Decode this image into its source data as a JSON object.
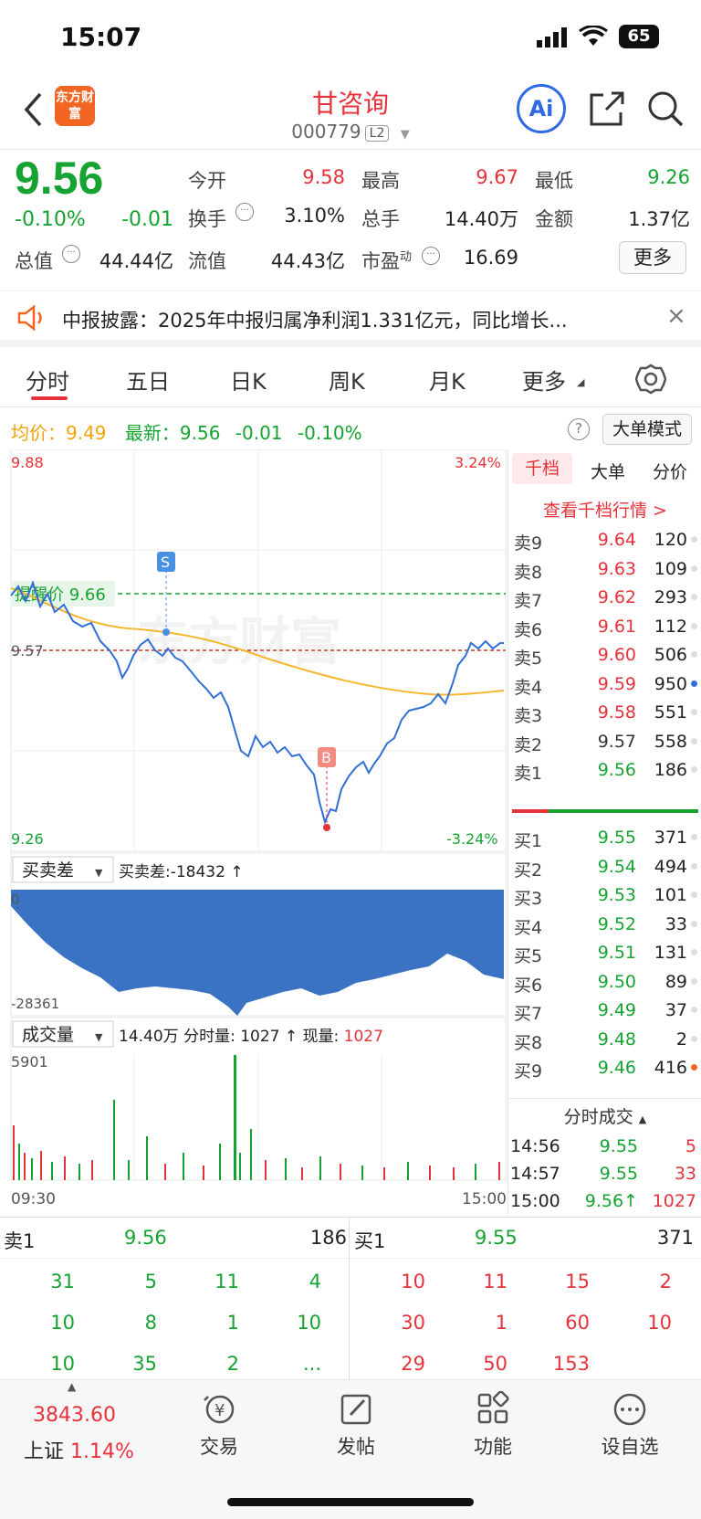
{
  "status": {
    "time": "15:07",
    "battery": "65"
  },
  "header": {
    "title": "甘咨询",
    "code": "000779",
    "level": "L2",
    "logo_text": "东方财富",
    "ai_label": "Ai"
  },
  "quote": {
    "price": "9.56",
    "pct": "-0.10%",
    "change": "-0.01",
    "open_label": "今开",
    "open": "9.58",
    "high_label": "最高",
    "high": "9.67",
    "low_label": "最低",
    "low": "9.26",
    "turnover_label": "换手",
    "turnover": "3.10%",
    "volume_label": "总手",
    "volume": "14.40万",
    "amount_label": "金额",
    "amount": "1.37亿",
    "mktcap_label": "总值",
    "mktcap": "44.44亿",
    "float_label": "流值",
    "float": "44.43亿",
    "pe_label": "市盈",
    "pe_sup": "动",
    "pe": "16.69",
    "more": "更多"
  },
  "notice": {
    "text": "中报披露：2025年中报归属净利润1.331亿元，同比增长..."
  },
  "tabs": [
    "分时",
    "五日",
    "日K",
    "周K",
    "月K",
    "更多"
  ],
  "info": {
    "avg_label": "均价：",
    "avg": "9.49",
    "latest_label": "最新：",
    "latest": "9.56",
    "chg": "-0.01",
    "pct": "-0.10%",
    "mode_btn": "大单模式"
  },
  "chart": {
    "y_top": "9.88",
    "y_top_pct": "3.24%",
    "y_bottom": "9.26",
    "y_bottom_pct": "-3.24%",
    "prev_close": "9.57",
    "alert_label": "提醒价 9.66",
    "watermark": "东方财富",
    "marker_s": "S",
    "marker_b": "B",
    "diff_btn": "买卖差",
    "diff_text": "买卖差:-18432 ↑",
    "diff_top": "0",
    "diff_bottom": "-28361",
    "vol_btn": "成交量",
    "vol_text1": "14.40万 分时量: 1027 ↑ 现量: ",
    "vol_text2": "1027",
    "vol_max": "5901",
    "time_start": "09:30",
    "time_end": "15:00"
  },
  "orderbook": {
    "tabs": [
      "千档",
      "大单",
      "分价"
    ],
    "link": "查看千档行情 >",
    "sells": [
      {
        "label": "卖9",
        "price": "9.64",
        "vol": "120",
        "c": "red"
      },
      {
        "label": "卖8",
        "price": "9.63",
        "vol": "109",
        "c": "red"
      },
      {
        "label": "卖7",
        "price": "9.62",
        "vol": "293",
        "c": "red"
      },
      {
        "label": "卖6",
        "price": "9.61",
        "vol": "112",
        "c": "red"
      },
      {
        "label": "卖5",
        "price": "9.60",
        "vol": "506",
        "c": "red"
      },
      {
        "label": "卖4",
        "price": "9.59",
        "vol": "950",
        "c": "red"
      },
      {
        "label": "卖3",
        "price": "9.58",
        "vol": "551",
        "c": "red"
      },
      {
        "label": "卖2",
        "price": "9.57",
        "vol": "558",
        "c": "gray"
      },
      {
        "label": "卖1",
        "price": "9.56",
        "vol": "186",
        "c": "green"
      }
    ],
    "buys": [
      {
        "label": "买1",
        "price": "9.55",
        "vol": "371",
        "c": "green"
      },
      {
        "label": "买2",
        "price": "9.54",
        "vol": "494",
        "c": "green"
      },
      {
        "label": "买3",
        "price": "9.53",
        "vol": "101",
        "c": "green"
      },
      {
        "label": "买4",
        "price": "9.52",
        "vol": "33",
        "c": "green"
      },
      {
        "label": "买5",
        "price": "9.51",
        "vol": "131",
        "c": "green"
      },
      {
        "label": "买6",
        "price": "9.50",
        "vol": "89",
        "c": "green"
      },
      {
        "label": "买7",
        "price": "9.49",
        "vol": "37",
        "c": "green"
      },
      {
        "label": "买8",
        "price": "9.48",
        "vol": "2",
        "c": "green"
      },
      {
        "label": "买9",
        "price": "9.46",
        "vol": "416",
        "c": "green"
      }
    ],
    "trades_title": "分时成交",
    "trades": [
      {
        "time": "14:56",
        "price": "9.55",
        "vol": "5"
      },
      {
        "time": "14:57",
        "price": "9.55",
        "vol": "33"
      },
      {
        "time": "15:00",
        "price": "9.56↑",
        "vol": "1027"
      }
    ]
  },
  "book": {
    "sell1_label": "卖1",
    "sell1_price": "9.56",
    "sell1_vol": "186",
    "buy1_label": "买1",
    "buy1_price": "9.55",
    "buy1_vol": "371",
    "sell_queue": [
      [
        "31",
        "5",
        "11",
        "4"
      ],
      [
        "10",
        "8",
        "1",
        "10"
      ],
      [
        "10",
        "35",
        "2",
        "..."
      ]
    ],
    "buy_queue": [
      [
        "10",
        "11",
        "15",
        "2"
      ],
      [
        "30",
        "1",
        "60",
        "10"
      ],
      [
        "29",
        "50",
        "153",
        ""
      ]
    ]
  },
  "bottom_nav": {
    "index_value": "3843.60",
    "index_name": "上证",
    "index_pct": "1.14%",
    "items": [
      "交易",
      "发帖",
      "功能",
      "设自选"
    ]
  }
}
